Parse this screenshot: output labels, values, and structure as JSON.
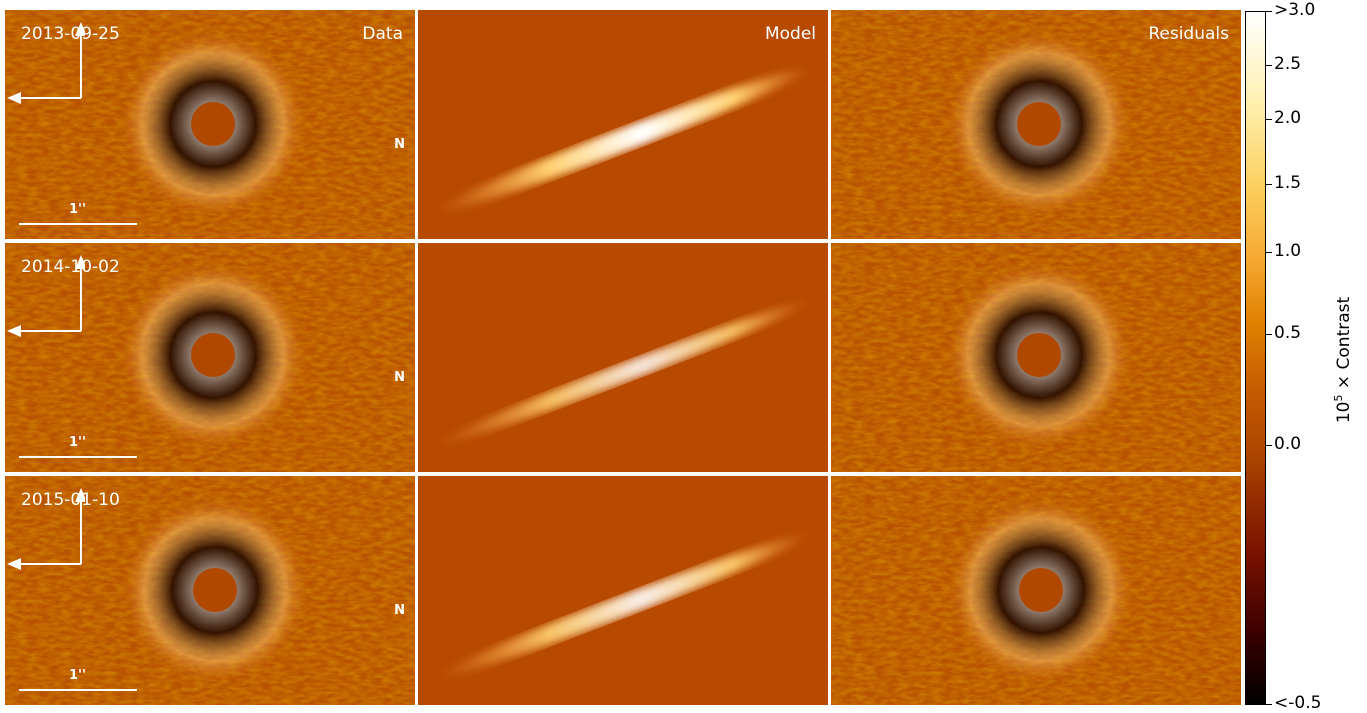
{
  "columns": {
    "data": "Data",
    "model": "Model",
    "residuals": "Residuals"
  },
  "rows": [
    {
      "date": "2013-09-25",
      "scale_label": "1''",
      "north_label": "N"
    },
    {
      "date": "2014-10-02",
      "scale_label": "1''",
      "north_label": "N"
    },
    {
      "date": "2015-01-10",
      "scale_label": "1''",
      "north_label": "N"
    }
  ],
  "colorbar": {
    "title_prefix": "10",
    "title_exponent": "5",
    "title_suffix": " × Contrast",
    "ticks": [
      ">3.0",
      "2.5",
      "2.0",
      "1.5",
      "1.0",
      "0.5",
      "0.0",
      "<-0.5"
    ],
    "colors": {
      "background": "#b85200",
      "min": "#000000",
      "max": "#ffffff"
    }
  }
}
